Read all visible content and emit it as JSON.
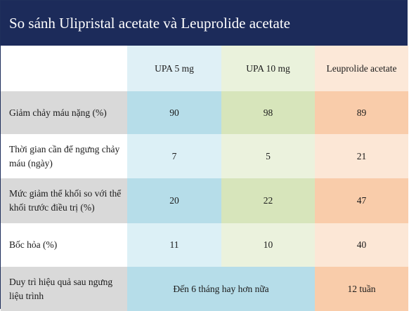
{
  "title": "So sánh Ulipristal acetate và Leuprolide acetate",
  "columns": [
    "UPA 5 mg",
    "UPA 10 mg",
    "Leuprolide acetate"
  ],
  "rows": [
    {
      "label": "Giảm chảy máu nặng (%)",
      "values": [
        "90",
        "98",
        "89"
      ]
    },
    {
      "label": "Thời gian cần để ngưng chảy máu (ngày)",
      "values": [
        "7",
        "5",
        "21"
      ]
    },
    {
      "label": "Mức giảm thể khối so với thể khối trước điều trị (%)",
      "values": [
        "20",
        "22",
        "47"
      ]
    },
    {
      "label": "Bốc hỏa (%)",
      "values": [
        "11",
        "10",
        "40"
      ]
    }
  ],
  "last_row": {
    "label": "Duy trì hiệu quả sau ngưng liệu trình",
    "upa_merged": "Đến 6 tháng hay hơn nữa",
    "leuprolide": "12 tuần"
  },
  "colors": {
    "header_bg": "#1c2b5a",
    "upa5_dark": "#b6dde9",
    "upa10_dark": "#d7e5bb",
    "leuprolide_dark": "#f9ccaa",
    "label_dark": "#d9d9d9"
  }
}
